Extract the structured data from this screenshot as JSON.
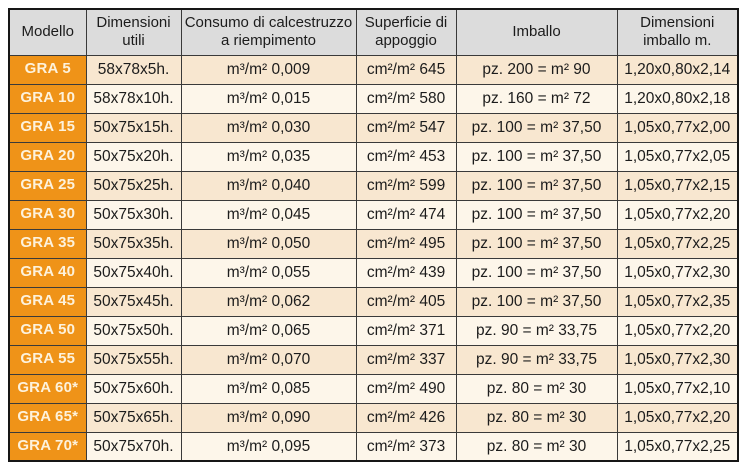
{
  "table": {
    "columns": [
      "Modello",
      "Dimensioni utili",
      "Consumo di calcestruzzo a riempimento",
      "Superficie di appoggio",
      "Imballo",
      "Dimensioni imballo m."
    ],
    "rows": [
      {
        "model": "GRA 5",
        "dimensioni_utili": "58x78x5h.",
        "consumo": "m³/m² 0,009",
        "superficie": "cm²/m² 645",
        "imballo": "pz. 200 = m² 90",
        "dimensioni_imballo": "1,20x0,80x2,14"
      },
      {
        "model": "GRA 10",
        "dimensioni_utili": "58x78x10h.",
        "consumo": "m³/m² 0,015",
        "superficie": "cm²/m² 580",
        "imballo": "pz. 160 = m² 72",
        "dimensioni_imballo": "1,20x0,80x2,18"
      },
      {
        "model": "GRA 15",
        "dimensioni_utili": "50x75x15h.",
        "consumo": "m³/m² 0,030",
        "superficie": "cm²/m² 547",
        "imballo": "pz. 100 = m² 37,50",
        "dimensioni_imballo": "1,05x0,77x2,00"
      },
      {
        "model": "GRA 20",
        "dimensioni_utili": "50x75x20h.",
        "consumo": "m³/m² 0,035",
        "superficie": "cm²/m² 453",
        "imballo": "pz. 100 = m² 37,50",
        "dimensioni_imballo": "1,05x0,77x2,05"
      },
      {
        "model": "GRA 25",
        "dimensioni_utili": "50x75x25h.",
        "consumo": "m³/m² 0,040",
        "superficie": "cm²/m² 599",
        "imballo": "pz. 100 = m² 37,50",
        "dimensioni_imballo": "1,05x0,77x2,15"
      },
      {
        "model": "GRA 30",
        "dimensioni_utili": "50x75x30h.",
        "consumo": "m³/m² 0,045",
        "superficie": "cm²/m² 474",
        "imballo": "pz. 100 = m² 37,50",
        "dimensioni_imballo": "1,05x0,77x2,20"
      },
      {
        "model": "GRA 35",
        "dimensioni_utili": "50x75x35h.",
        "consumo": "m³/m² 0,050",
        "superficie": "cm²/m² 495",
        "imballo": "pz. 100 = m² 37,50",
        "dimensioni_imballo": "1,05x0,77x2,25"
      },
      {
        "model": "GRA 40",
        "dimensioni_utili": "50x75x40h.",
        "consumo": "m³/m² 0,055",
        "superficie": "cm²/m² 439",
        "imballo": "pz. 100 = m² 37,50",
        "dimensioni_imballo": "1,05x0,77x2,30"
      },
      {
        "model": "GRA 45",
        "dimensioni_utili": "50x75x45h.",
        "consumo": "m³/m² 0,062",
        "superficie": "cm²/m² 405",
        "imballo": "pz. 100 = m² 37,50",
        "dimensioni_imballo": "1,05x0,77x2,35"
      },
      {
        "model": "GRA 50",
        "dimensioni_utili": "50x75x50h.",
        "consumo": "m³/m² 0,065",
        "superficie": "cm²/m² 371",
        "imballo": "pz. 90 = m² 33,75",
        "dimensioni_imballo": "1,05x0,77x2,20"
      },
      {
        "model": "GRA 55",
        "dimensioni_utili": "50x75x55h.",
        "consumo": "m³/m² 0,070",
        "superficie": "cm²/m² 337",
        "imballo": "pz. 90 = m² 33,75",
        "dimensioni_imballo": "1,05x0,77x2,30"
      },
      {
        "model": "GRA 60*",
        "dimensioni_utili": "50x75x60h.",
        "consumo": "m³/m² 0,085",
        "superficie": "cm²/m² 490",
        "imballo": "pz. 80 = m² 30",
        "dimensioni_imballo": "1,05x0,77x2,10"
      },
      {
        "model": "GRA 65*",
        "dimensioni_utili": "50x75x65h.",
        "consumo": "m³/m² 0,090",
        "superficie": "cm²/m² 426",
        "imballo": "pz. 80 = m² 30",
        "dimensioni_imballo": "1,05x0,77x2,20"
      },
      {
        "model": "GRA 70*",
        "dimensioni_utili": "50x75x70h.",
        "consumo": "m³/m² 0,095",
        "superficie": "cm²/m² 373",
        "imballo": "pz. 80 = m² 30",
        "dimensioni_imballo": "1,05x0,77x2,25"
      }
    ]
  },
  "colors": {
    "model_cell_bg": "#ef9318",
    "model_cell_text": "#fdf2dc",
    "header_bg": "#dcdcdc",
    "row_odd_bg": "#f8e7d0",
    "row_even_bg": "#fdf6ea",
    "border": "#3a3a3a",
    "outer_border": "#161616",
    "text": "#1c1c1c"
  }
}
